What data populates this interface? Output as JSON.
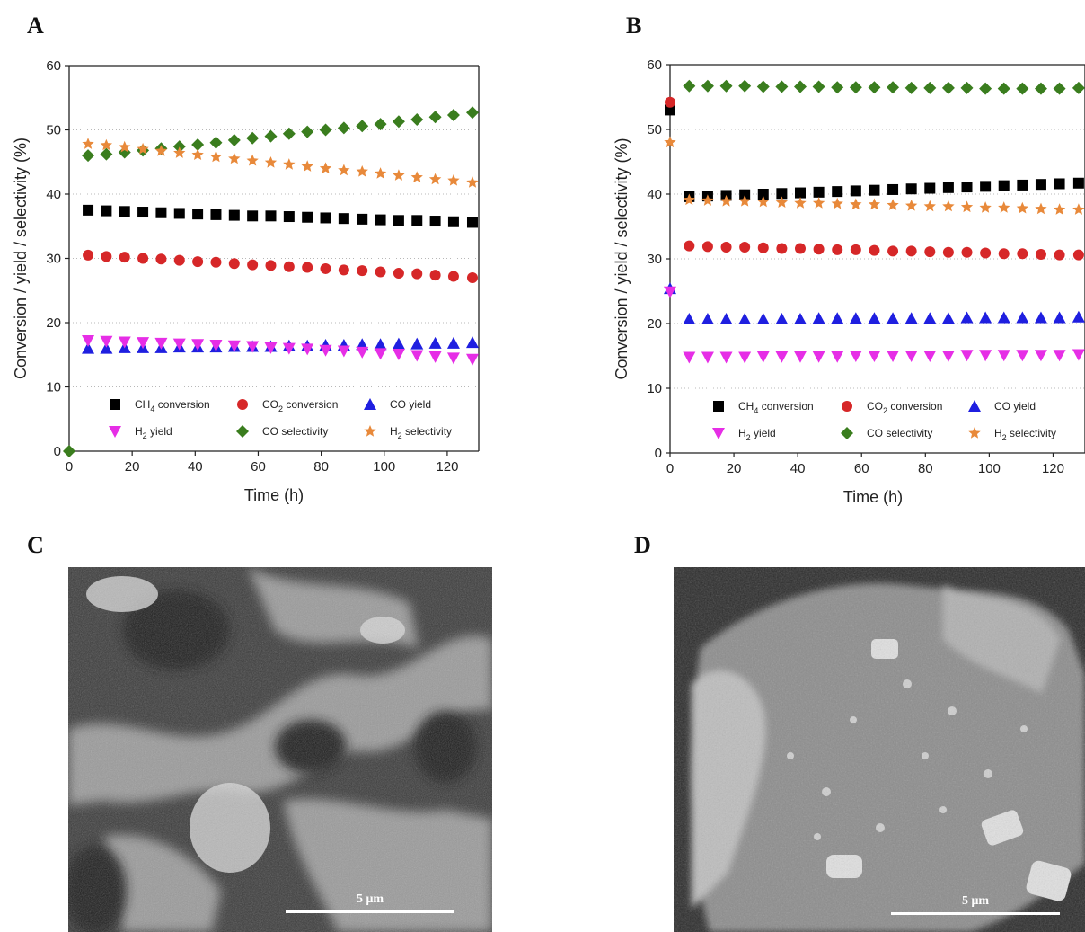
{
  "panels": {
    "a": "A",
    "b": "B",
    "c": "C",
    "d": "D"
  },
  "sem": {
    "c_scale": "5 μm",
    "d_scale": "5 μm"
  },
  "colors": {
    "ch4": "#000000",
    "co2": "#d62728",
    "coyield": "#1f1fe0",
    "h2yield": "#e62ee6",
    "cosel": "#3a7d1e",
    "h2sel": "#e8893a"
  },
  "chart_data": [
    {
      "type": "scatter",
      "panel": "A",
      "xlabel": "Time (h)",
      "ylabel": "Conversion / yield / selectivity (%)",
      "xlim": [
        0,
        130
      ],
      "ylim": [
        0,
        60
      ],
      "xticks": [
        0,
        20,
        40,
        60,
        80,
        100,
        120
      ],
      "yticks": [
        0,
        10,
        20,
        30,
        40,
        50,
        60
      ],
      "grid": "horizontal dotted",
      "legend_position": "bottom, inside",
      "x": [
        6,
        11.8,
        17.6,
        23.4,
        29.2,
        35,
        40.8,
        46.6,
        52.4,
        58.2,
        64,
        69.8,
        75.6,
        81.4,
        87.2,
        93,
        98.8,
        104.6,
        110.4,
        116.2,
        122,
        128
      ],
      "series": [
        {
          "name": "CH4 conversion",
          "marker": "square",
          "color": "#000000",
          "values": [
            37.5,
            37.4,
            37.3,
            37.2,
            37.1,
            37.0,
            36.9,
            36.8,
            36.7,
            36.6,
            36.6,
            36.5,
            36.4,
            36.3,
            36.2,
            36.1,
            36.0,
            35.9,
            35.9,
            35.8,
            35.7,
            35.6
          ]
        },
        {
          "name": "CO2 conversion",
          "marker": "circle",
          "color": "#d62728",
          "values": [
            30.5,
            30.3,
            30.2,
            30.0,
            29.9,
            29.7,
            29.5,
            29.4,
            29.2,
            29.0,
            28.9,
            28.7,
            28.6,
            28.4,
            28.2,
            28.1,
            27.9,
            27.7,
            27.6,
            27.4,
            27.2,
            27.0
          ]
        },
        {
          "name": "CO yield",
          "marker": "triangle-up",
          "color": "#1f1fe0",
          "values": [
            16.0,
            16.0,
            16.1,
            16.1,
            16.1,
            16.2,
            16.2,
            16.2,
            16.3,
            16.3,
            16.3,
            16.4,
            16.4,
            16.5,
            16.5,
            16.6,
            16.6,
            16.7,
            16.7,
            16.8,
            16.8,
            16.9
          ]
        },
        {
          "name": "H2 yield",
          "marker": "triangle-down",
          "color": "#e62ee6",
          "values": [
            17.2,
            17.1,
            17.0,
            16.9,
            16.8,
            16.7,
            16.6,
            16.5,
            16.4,
            16.3,
            16.1,
            16.0,
            15.9,
            15.7,
            15.6,
            15.4,
            15.2,
            15.1,
            14.9,
            14.7,
            14.5,
            14.3
          ]
        },
        {
          "name": "CO selectivity",
          "marker": "diamond",
          "color": "#3a7d1e",
          "values": [
            46.0,
            46.2,
            46.5,
            46.8,
            47.1,
            47.4,
            47.7,
            48.0,
            48.4,
            48.7,
            49.0,
            49.4,
            49.7,
            50.0,
            50.3,
            50.6,
            50.9,
            51.3,
            51.6,
            52.0,
            52.3,
            52.7
          ]
        },
        {
          "name": "H2 selectivity",
          "marker": "star",
          "color": "#e8893a",
          "values": [
            47.8,
            47.6,
            47.3,
            47.0,
            46.7,
            46.4,
            46.1,
            45.8,
            45.5,
            45.2,
            44.9,
            44.6,
            44.3,
            44.0,
            43.7,
            43.5,
            43.2,
            42.9,
            42.6,
            42.3,
            42.1,
            41.8
          ]
        }
      ],
      "initial_points": [
        {
          "series": "CO selectivity",
          "x": 0,
          "y": 0
        }
      ]
    },
    {
      "type": "scatter",
      "panel": "B",
      "xlabel": "Time (h)",
      "ylabel": "Conversion / yield / selectivity (%)",
      "xlim": [
        0,
        130
      ],
      "ylim": [
        0,
        60
      ],
      "xticks": [
        0,
        20,
        40,
        60,
        80,
        100,
        120
      ],
      "yticks": [
        0,
        10,
        20,
        30,
        40,
        50,
        60
      ],
      "grid": "horizontal dotted",
      "legend_position": "bottom, inside",
      "x": [
        6,
        11.8,
        17.6,
        23.4,
        29.2,
        35,
        40.8,
        46.6,
        52.4,
        58.2,
        64,
        69.8,
        75.6,
        81.4,
        87.2,
        93,
        98.8,
        104.6,
        110.4,
        116.2,
        122,
        128
      ],
      "series": [
        {
          "name": "CH4 conversion",
          "marker": "square",
          "color": "#000000",
          "values": [
            39.6,
            39.7,
            39.8,
            39.9,
            40.0,
            40.1,
            40.2,
            40.3,
            40.4,
            40.5,
            40.6,
            40.7,
            40.8,
            40.9,
            41.0,
            41.1,
            41.2,
            41.3,
            41.4,
            41.5,
            41.6,
            41.7
          ]
        },
        {
          "name": "CO2 conversion",
          "marker": "circle",
          "color": "#d62728",
          "values": [
            32.0,
            31.9,
            31.8,
            31.8,
            31.7,
            31.6,
            31.6,
            31.5,
            31.4,
            31.4,
            31.3,
            31.2,
            31.2,
            31.1,
            31.0,
            31.0,
            30.9,
            30.8,
            30.8,
            30.7,
            30.6,
            30.6
          ]
        },
        {
          "name": "CO yield",
          "marker": "triangle-up",
          "color": "#1f1fe0",
          "values": [
            20.7,
            20.7,
            20.7,
            20.7,
            20.7,
            20.7,
            20.7,
            20.8,
            20.8,
            20.8,
            20.8,
            20.8,
            20.8,
            20.8,
            20.8,
            20.9,
            20.9,
            20.9,
            20.9,
            20.9,
            20.9,
            21.0
          ]
        },
        {
          "name": "H2 yield",
          "marker": "triangle-down",
          "color": "#e62ee6",
          "values": [
            14.8,
            14.8,
            14.8,
            14.8,
            14.9,
            14.9,
            14.9,
            14.9,
            14.9,
            15.0,
            15.0,
            15.0,
            15.0,
            15.0,
            15.0,
            15.1,
            15.1,
            15.1,
            15.1,
            15.1,
            15.1,
            15.2
          ]
        },
        {
          "name": "CO selectivity",
          "marker": "diamond",
          "color": "#3a7d1e",
          "values": [
            56.7,
            56.7,
            56.7,
            56.7,
            56.6,
            56.6,
            56.6,
            56.6,
            56.5,
            56.5,
            56.5,
            56.5,
            56.4,
            56.4,
            56.4,
            56.4,
            56.3,
            56.3,
            56.3,
            56.3,
            56.3,
            56.4
          ]
        },
        {
          "name": "H2 selectivity",
          "marker": "star",
          "color": "#e8893a",
          "values": [
            39.1,
            39.0,
            38.9,
            38.9,
            38.8,
            38.7,
            38.6,
            38.6,
            38.5,
            38.4,
            38.4,
            38.3,
            38.2,
            38.1,
            38.1,
            38.0,
            37.9,
            37.9,
            37.8,
            37.7,
            37.6,
            37.6
          ]
        }
      ],
      "initial_points": [
        {
          "series": "CH4 conversion",
          "x": 0,
          "y": 53
        },
        {
          "series": "CO2 conversion",
          "x": 0,
          "y": 54.2
        },
        {
          "series": "CO yield",
          "x": 0,
          "y": 25.4
        },
        {
          "series": "H2 yield",
          "x": 0,
          "y": 24.9
        },
        {
          "series": "H2 selectivity",
          "x": 0,
          "y": 48
        }
      ]
    }
  ]
}
